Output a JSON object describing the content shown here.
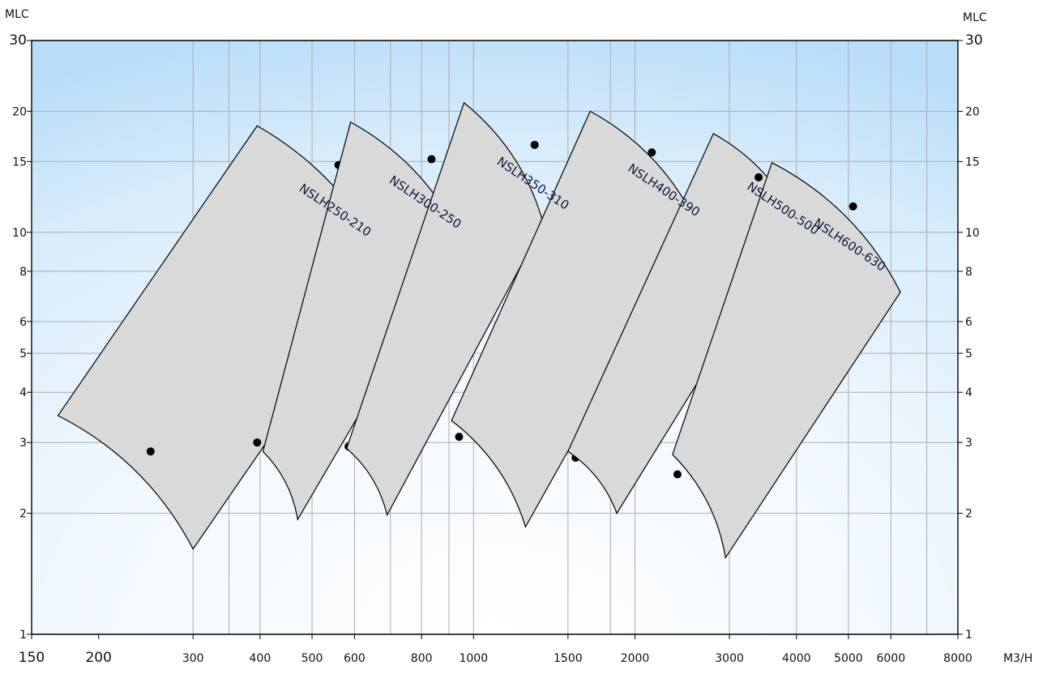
{
  "axes": {
    "x_unit": "M3/H",
    "y_unit_left": "MLC",
    "y_unit_right": "MLC"
  },
  "chart_data": {
    "type": "area",
    "x_scale": "log",
    "y_scale": "log",
    "xlim": [
      150,
      8000
    ],
    "ylim": [
      1,
      30
    ],
    "x_ticks": [
      150,
      200,
      300,
      400,
      500,
      600,
      800,
      1000,
      1500,
      2000,
      3000,
      4000,
      5000,
      6000,
      8000
    ],
    "x_tick_labels": [
      "150",
      "200",
      "300",
      "400",
      "500",
      "600",
      "800",
      "1000",
      "1500",
      "2000",
      "3000",
      "4000",
      "5000",
      "6000",
      "8000"
    ],
    "x_grid": [
      300,
      350,
      400,
      500,
      600,
      700,
      800,
      900,
      1000,
      1500,
      1800,
      2000,
      3000,
      4000,
      5000,
      6000,
      7000,
      8000
    ],
    "y_ticks": [
      1,
      2,
      3,
      4,
      5,
      6,
      8,
      10,
      15,
      20,
      30
    ],
    "y_tick_labels": [
      "1",
      "2",
      "3",
      "4",
      "5",
      "6",
      "8",
      "10",
      "15",
      "20",
      "30"
    ],
    "y_grid": [
      2,
      3,
      4,
      5,
      6,
      8,
      10,
      15,
      20
    ],
    "grid": true,
    "series": [
      {
        "name": "NSLH250-210",
        "region": {
          "upper_left": [
            395,
            18.4
          ],
          "upper_right": [
            690,
            8.2
          ],
          "lower_right": [
            300,
            1.63
          ],
          "lower_left": [
            168,
            3.5
          ]
        },
        "bep_points": [
          [
            560,
            14.7
          ],
          [
            250,
            2.85
          ],
          [
            395,
            3.0
          ]
        ]
      },
      {
        "name": "NSLH300-250",
        "region": {
          "upper_left": [
            590,
            18.8
          ],
          "upper_right": [
            950,
            9.6
          ],
          "lower_right": [
            470,
            1.93
          ],
          "lower_left": [
            405,
            2.85
          ]
        },
        "bep_points": [
          [
            835,
            15.2
          ],
          [
            585,
            2.93
          ]
        ]
      },
      {
        "name": "NSLH350-310",
        "region": {
          "upper_left": [
            960,
            21.0
          ],
          "upper_right": [
            1350,
            10.5
          ],
          "lower_right": [
            690,
            1.98
          ],
          "lower_left": [
            580,
            2.9
          ]
        },
        "bep_points": [
          [
            1300,
            16.5
          ],
          [
            940,
            3.1
          ]
        ]
      },
      {
        "name": "NSLH400-390",
        "region": {
          "upper_left": [
            1650,
            20.0
          ],
          "upper_right": [
            2600,
            10.6
          ],
          "lower_right": [
            1250,
            1.85
          ],
          "lower_left": [
            910,
            3.4
          ]
        },
        "bep_points": [
          [
            2150,
            15.8
          ],
          [
            1550,
            2.75
          ]
        ]
      },
      {
        "name": "NSLH500-500",
        "region": {
          "upper_left": [
            2800,
            17.6
          ],
          "upper_right": [
            4000,
            10.6
          ],
          "lower_right": [
            1850,
            2.0
          ],
          "lower_left": [
            1500,
            2.85
          ]
        },
        "bep_points": [
          [
            3400,
            13.7
          ],
          [
            2400,
            2.5
          ]
        ]
      },
      {
        "name": "NSLH600-630",
        "region": {
          "upper_left": [
            3600,
            14.9
          ],
          "upper_right": [
            6250,
            7.1
          ],
          "lower_right": [
            2950,
            1.55
          ],
          "lower_left": [
            2350,
            2.8
          ]
        },
        "bep_points": [
          [
            5100,
            11.6
          ]
        ]
      }
    ]
  }
}
